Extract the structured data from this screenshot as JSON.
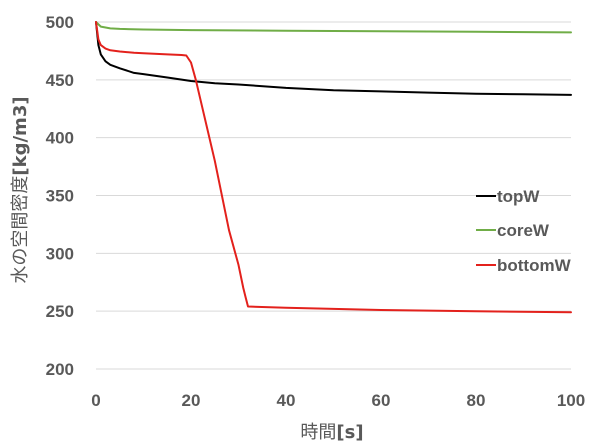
{
  "chart_data": {
    "type": "line",
    "title": "",
    "xlabel_prefix": "時間",
    "xlabel_unit": "[s]",
    "ylabel_prefix": "水の空間密度",
    "ylabel_unit": "[kg/m3]",
    "xlim": [
      0,
      100
    ],
    "ylim": [
      200,
      500
    ],
    "xticks": [
      "0",
      "20",
      "40",
      "60",
      "80",
      "100"
    ],
    "yticks": [
      "200",
      "250",
      "300",
      "350",
      "400",
      "450",
      "500"
    ],
    "xtick_values": [
      0,
      20,
      40,
      60,
      80,
      100
    ],
    "ytick_values": [
      200,
      250,
      300,
      350,
      400,
      450,
      500
    ],
    "grid": "horizontal",
    "legend_position": "right",
    "series": [
      {
        "name": "topW",
        "color": "#000000",
        "x": [
          0,
          0.5,
          1,
          2,
          3,
          5,
          8,
          10,
          15,
          20,
          25,
          30,
          40,
          50,
          60,
          70,
          80,
          90,
          100
        ],
        "y": [
          500,
          480,
          472,
          466,
          463,
          460,
          456,
          455,
          452,
          449,
          447,
          446,
          443,
          441,
          440,
          439,
          438,
          437.5,
          437
        ]
      },
      {
        "name": "coreW",
        "color": "#70AD47",
        "x": [
          0,
          1,
          3,
          5,
          10,
          20,
          40,
          60,
          80,
          100
        ],
        "y": [
          500,
          496,
          494.5,
          494,
          493.5,
          493,
          492.5,
          492,
          491.5,
          491
        ]
      },
      {
        "name": "bottomW",
        "color": "#E3211C",
        "x": [
          0,
          0.5,
          1,
          2,
          3,
          5,
          8,
          10,
          15,
          18,
          19,
          20,
          21,
          25,
          28,
          30,
          31,
          31.5,
          32,
          40,
          60,
          80,
          100
        ],
        "y": [
          500,
          485,
          480,
          477,
          475.5,
          474.5,
          473.5,
          473,
          472,
          471.5,
          471,
          465,
          450,
          380,
          320,
          290,
          270,
          262,
          254,
          253,
          251,
          250,
          249
        ]
      }
    ]
  }
}
